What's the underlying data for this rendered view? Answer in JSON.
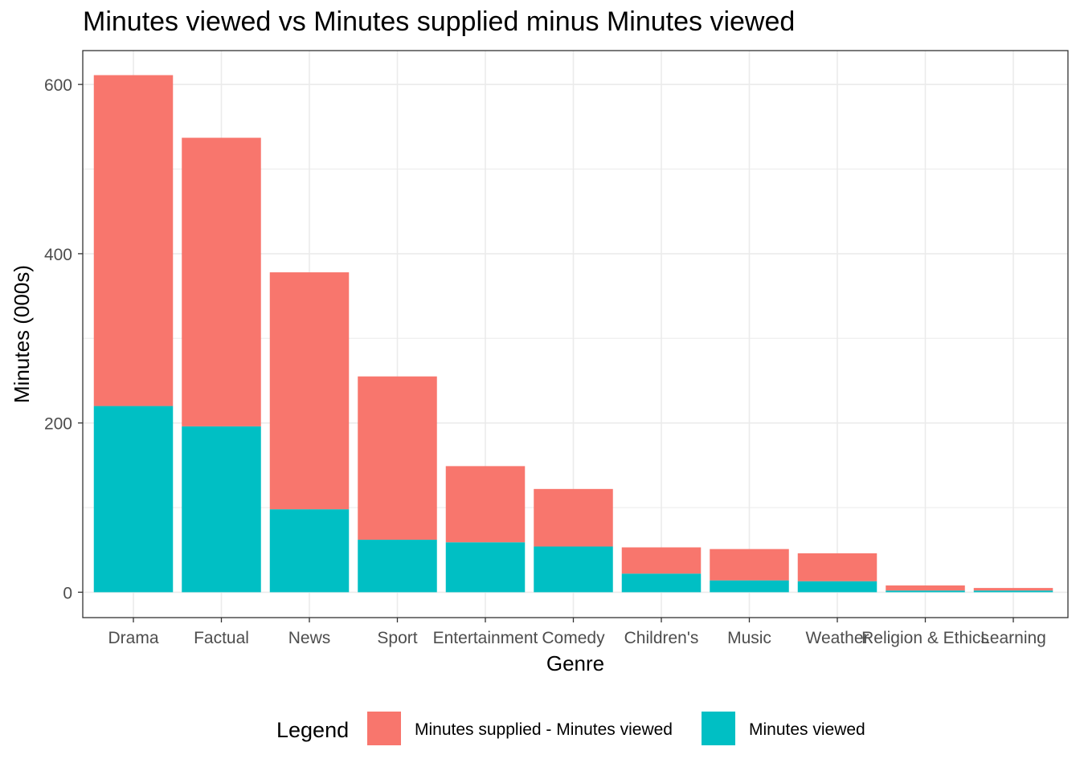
{
  "chart_data": {
    "type": "bar",
    "stacked": true,
    "title": "Minutes viewed vs Minutes supplied minus Minutes viewed",
    "xlabel": "Genre",
    "ylabel": "Minutes (000s)",
    "ylim": [
      -30,
      640
    ],
    "yticks": [
      0,
      200,
      400,
      600
    ],
    "grid": true,
    "legend_position": "bottom",
    "legend_title": "Legend",
    "categories": [
      "Drama",
      "Factual",
      "News",
      "Sport",
      "Entertainment",
      "Comedy",
      "Children's",
      "Music",
      "Weather",
      "Religion & Ethics",
      "Learning"
    ],
    "series": [
      {
        "name": "Minutes viewed",
        "color": "#00BFC4",
        "values": [
          220,
          196,
          98,
          62,
          59,
          54,
          22,
          14,
          13,
          2,
          2
        ]
      },
      {
        "name": "Minutes supplied - Minutes viewed",
        "color": "#F8766D",
        "values": [
          391,
          341,
          280,
          193,
          90,
          68,
          31,
          37,
          33,
          6,
          3
        ]
      }
    ],
    "legend_order": [
      1,
      0
    ]
  }
}
